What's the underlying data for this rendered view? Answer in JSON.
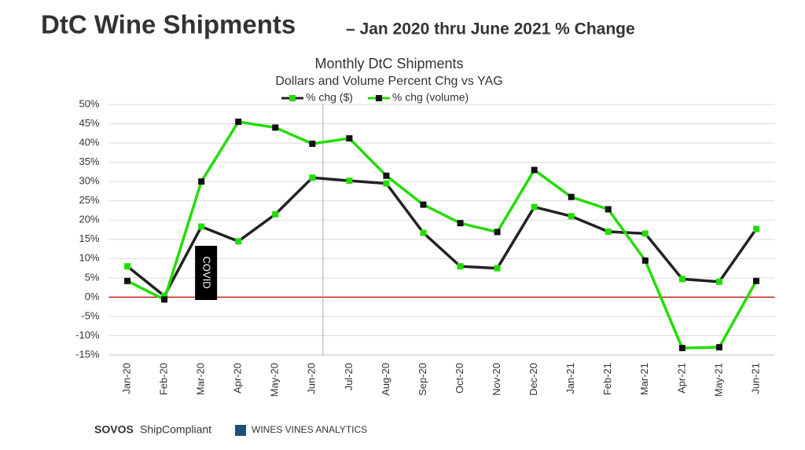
{
  "header": {
    "title": "DtC Wine Shipments",
    "subtitle": "– Jan 2020 thru June 2021 % Change"
  },
  "footer": {
    "brand": "SOVOS",
    "product": "ShipCompliant",
    "partner": "WINES VINES ANALYTICS"
  },
  "chart_data": {
    "type": "line",
    "title": "Monthly DtC Shipments",
    "subtitle": "Dollars and Volume Percent Chg vs YAG",
    "categories": [
      "Jan-20",
      "Feb-20",
      "Mar-20",
      "Apr-20",
      "May-20",
      "Jun-20",
      "Jul-20",
      "Aug-20",
      "Sep-20",
      "Oct-20",
      "Nov-20",
      "Dec-20",
      "Jan-21",
      "Feb-21",
      "Mar-21",
      "Apr-21",
      "May-21",
      "Jun-21"
    ],
    "series": [
      {
        "name": "% chg ($)",
        "color": "#222222",
        "marker_color": "#22dd00",
        "values": [
          8,
          0.3,
          18.3,
          14.5,
          21.5,
          31,
          30.2,
          29.5,
          16.7,
          8,
          7.5,
          23.4,
          21,
          17,
          16.5,
          4.7,
          4,
          17.7
        ]
      },
      {
        "name": "% chg (volume)",
        "color": "#22dd00",
        "marker_color": "#111111",
        "values": [
          4.2,
          -0.6,
          30,
          45.5,
          44,
          39.8,
          41.2,
          31.5,
          24,
          19.2,
          16.9,
          33,
          26,
          22.8,
          9.5,
          -13.2,
          -13,
          4.2
        ]
      }
    ],
    "ylim": [
      -15,
      50
    ],
    "yticks": [
      {
        "value": -15,
        "label": "-15%"
      },
      {
        "value": -10,
        "label": "-10%"
      },
      {
        "value": -5,
        "label": "-5%"
      },
      {
        "value": 0,
        "label": "0%"
      },
      {
        "value": 5,
        "label": "5%"
      },
      {
        "value": 10,
        "label": "10%"
      },
      {
        "value": 15,
        "label": "15%"
      },
      {
        "value": 20,
        "label": "20%"
      },
      {
        "value": 25,
        "label": "25%"
      },
      {
        "value": 30,
        "label": "30%"
      },
      {
        "value": 35,
        "label": "35%"
      },
      {
        "value": 40,
        "label": "40%"
      },
      {
        "value": 45,
        "label": "45%"
      },
      {
        "value": 50,
        "label": "50%"
      }
    ],
    "grid": true,
    "zero_line_color": "#c00000",
    "annotation": "COVID",
    "legend": "top"
  }
}
